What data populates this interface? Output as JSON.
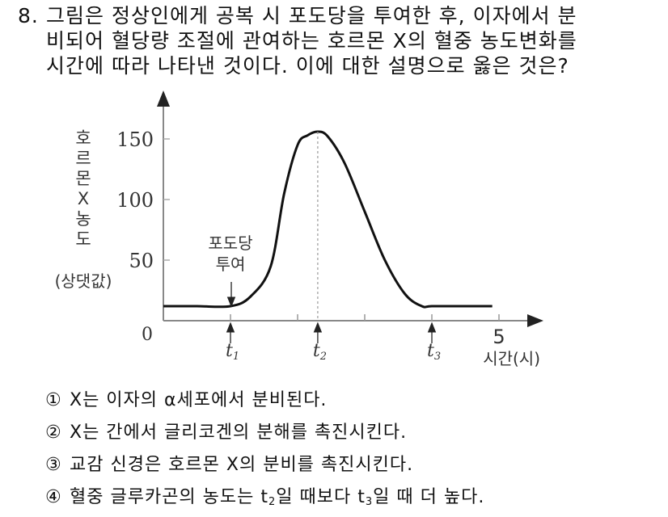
{
  "question": {
    "number": "8.",
    "lines": [
      "그림은 정상인에게 공복 시 포도당을 투여한 후, 이자에서 분",
      "비되어 혈당량 조절에 관여하는 호르몬 X의 혈중 농도변화를",
      "시간에 따라 나타낸 것이다. 이에 대한 설명으로 옳은 것은?"
    ]
  },
  "chart_data": {
    "type": "line",
    "title": "",
    "xlabel": "시간(시)",
    "ylabel": "호르몬 X 농도 (상댓값)",
    "ylabel_chars": [
      "호",
      "르",
      "몬",
      "X",
      "농",
      "도"
    ],
    "ylabel_unit": "(상댓값)",
    "xlim": [
      0,
      5.4
    ],
    "ylim": [
      0,
      175
    ],
    "x_ticks": [
      0,
      1,
      2,
      3,
      4,
      5
    ],
    "x_tick_labels": [
      "0",
      "",
      "",
      "",
      "",
      "5"
    ],
    "y_ticks": [
      50,
      100,
      150
    ],
    "y_tick_labels": [
      "50",
      "100",
      "150"
    ],
    "origin_label": "0",
    "grid": false,
    "series": [
      {
        "name": "호르몬 X",
        "x": [
          0,
          0.5,
          1.0,
          1.3,
          1.6,
          1.8,
          2.0,
          2.15,
          2.3,
          2.45,
          2.7,
          3.0,
          3.3,
          3.6,
          3.85,
          4.0,
          4.5,
          4.9
        ],
        "y": [
          12,
          12,
          12,
          20,
          45,
          105,
          145,
          153,
          156,
          152,
          130,
          90,
          50,
          22,
          12,
          12,
          12,
          12
        ]
      }
    ],
    "markers": [
      {
        "label": "t",
        "sub": "1",
        "x": 1.0
      },
      {
        "label": "t",
        "sub": "2",
        "x": 2.3,
        "dashed_line_to_peak": true
      },
      {
        "label": "t",
        "sub": "3",
        "x": 4.0
      }
    ],
    "annotations": [
      {
        "text_lines": [
          "포도당",
          "투여"
        ],
        "x": 1.0,
        "arrow_to_curve": true
      }
    ]
  },
  "choices": [
    {
      "mark": "①",
      "text": "X는 이자의 α세포에서 분비된다."
    },
    {
      "mark": "②",
      "text": "X는 간에서 글리코겐의 분해를 촉진시킨다."
    },
    {
      "mark": "③",
      "text": "교감 신경은 호르몬 X의 분비를 촉진시킨다."
    },
    {
      "mark": "④",
      "pre": "혈중 글루카곤의 농도는 t",
      "sub1": "2",
      "mid": "일 때보다 t",
      "sub2": "3",
      "post": "일 때 더 높다."
    }
  ]
}
